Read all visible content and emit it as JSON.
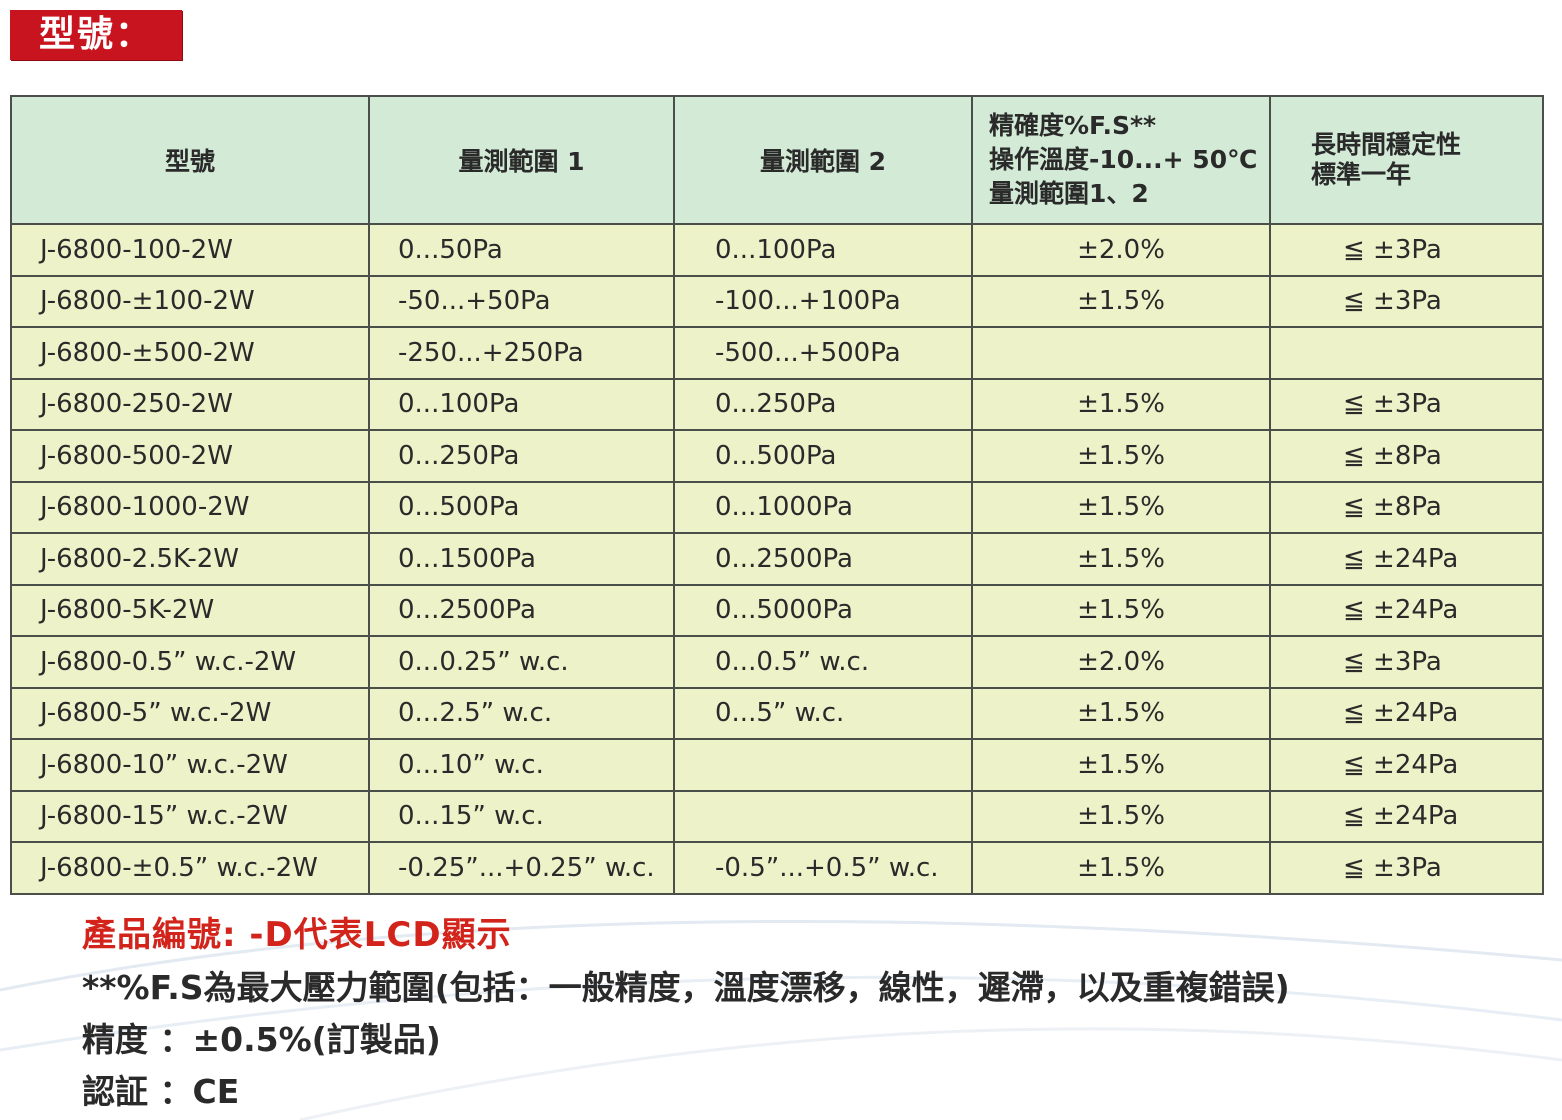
{
  "title_badge": "型號：",
  "table": {
    "headers": {
      "model": "型號",
      "range1": "量測範圍 1",
      "range2": "量測範圍 2",
      "accuracy_lines": [
        "精確度%F.S**",
        "操作溫度-10...+ 50℃",
        "量測範圍1、2"
      ],
      "stability_lines": [
        "長時間穩定性",
        "標準一年"
      ]
    },
    "rows": [
      {
        "model": "J-6800-100-2W",
        "range1": "0...50Pa",
        "range2": "0...100Pa",
        "accuracy": "±2.0%",
        "stability": "≦ ±3Pa"
      },
      {
        "model": "J-6800-±100-2W",
        "range1": "-50...+50Pa",
        "range2": "-100...+100Pa",
        "accuracy": "±1.5%",
        "stability": "≦ ±3Pa"
      },
      {
        "model": "J-6800-±500-2W",
        "range1": "-250...+250Pa",
        "range2": "-500...+500Pa",
        "accuracy": "",
        "stability": ""
      },
      {
        "model": "J-6800-250-2W",
        "range1": "0...100Pa",
        "range2": "0...250Pa",
        "accuracy": "±1.5%",
        "stability": "≦ ±3Pa"
      },
      {
        "model": "J-6800-500-2W",
        "range1": "0...250Pa",
        "range2": "0...500Pa",
        "accuracy": "±1.5%",
        "stability": "≦ ±8Pa"
      },
      {
        "model": "J-6800-1000-2W",
        "range1": "0...500Pa",
        "range2": "0...1000Pa",
        "accuracy": "±1.5%",
        "stability": "≦ ±8Pa"
      },
      {
        "model": "J-6800-2.5K-2W",
        "range1": "0...1500Pa",
        "range2": "0...2500Pa",
        "accuracy": "±1.5%",
        "stability": "≦ ±24Pa"
      },
      {
        "model": "J-6800-5K-2W",
        "range1": "0...2500Pa",
        "range2": "0...5000Pa",
        "accuracy": "±1.5%",
        "stability": "≦ ±24Pa"
      },
      {
        "model": "J-6800-0.5” w.c.-2W",
        "range1": "0...0.25” w.c.",
        "range2": "0...0.5” w.c.",
        "accuracy": "±2.0%",
        "stability": "≦ ±3Pa"
      },
      {
        "model": "J-6800-5” w.c.-2W",
        "range1": "0...2.5” w.c.",
        "range2": "0...5” w.c.",
        "accuracy": "±1.5%",
        "stability": "≦ ±24Pa"
      },
      {
        "model": "J-6800-10” w.c.-2W",
        "range1": "0...10” w.c.",
        "range2": "",
        "accuracy": "±1.5%",
        "stability": "≦ ±24Pa"
      },
      {
        "model": "J-6800-15” w.c.-2W",
        "range1": "0...15” w.c.",
        "range2": "",
        "accuracy": "±1.5%",
        "stability": "≦ ±24Pa"
      },
      {
        "model": "J-6800-±0.5” w.c.-2W",
        "range1": "-0.25”...+0.25” w.c.",
        "range2": "-0.5”...+0.5” w.c.",
        "accuracy": "±1.5%",
        "stability": "≦ ±3Pa"
      }
    ]
  },
  "notes": {
    "product_code": "產品編號: -D代表LCD顯示",
    "fs_definition": "**%F.S為最大壓力範圍(包括：一般精度，溫度漂移，線性，遲滯，以及重複錯誤)",
    "precision": "精度 ：±0.5%(訂製品)",
    "certification": "認証 ：CE"
  },
  "colors": {
    "badge_red": "#c8141e",
    "header_green": "#d3ead6",
    "row_yellow": "#edf2c8",
    "note_red": "#d2241b"
  }
}
